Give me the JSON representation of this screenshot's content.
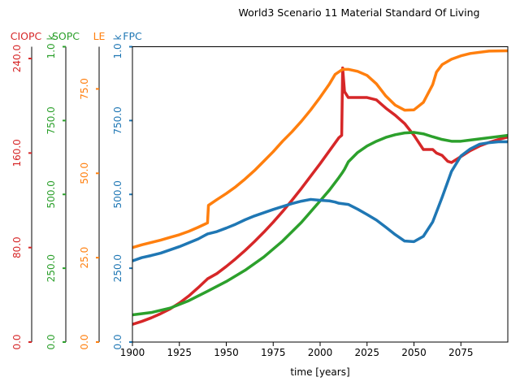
{
  "chart_data": {
    "type": "line",
    "title": "World3 Scenario 11 Material Standard Of Living",
    "xlabel": "time [years]",
    "xlim": [
      1900,
      2100
    ],
    "x_ticks": [
      1900,
      1925,
      1950,
      1975,
      2000,
      2025,
      2050,
      2075
    ],
    "grid": false,
    "series": [
      {
        "name": "CIOPC",
        "color": "#d62728",
        "ylim": [
          0,
          250
        ],
        "tick_values": [
          0,
          80,
          160,
          240
        ],
        "tick_labels": [
          "0.0",
          "80.0",
          "160.0",
          "240.0"
        ],
        "points": [
          [
            1900,
            15
          ],
          [
            1905,
            17.5
          ],
          [
            1910,
            20.5
          ],
          [
            1915,
            24
          ],
          [
            1920,
            28
          ],
          [
            1925,
            33
          ],
          [
            1930,
            39
          ],
          [
            1935,
            46
          ],
          [
            1940,
            53.5
          ],
          [
            1945,
            58
          ],
          [
            1950,
            64
          ],
          [
            1955,
            70.5
          ],
          [
            1960,
            77.5
          ],
          [
            1965,
            85
          ],
          [
            1970,
            93
          ],
          [
            1975,
            101.5
          ],
          [
            1980,
            110.5
          ],
          [
            1985,
            120
          ],
          [
            1990,
            130
          ],
          [
            1995,
            140.5
          ],
          [
            2000,
            151
          ],
          [
            2005,
            162
          ],
          [
            2010,
            173
          ],
          [
            2011.5,
            175
          ],
          [
            2012,
            232
          ],
          [
            2013,
            212
          ],
          [
            2015,
            207
          ],
          [
            2020,
            207
          ],
          [
            2025,
            207
          ],
          [
            2030,
            205
          ],
          [
            2035,
            198
          ],
          [
            2040,
            192
          ],
          [
            2045,
            185
          ],
          [
            2050,
            175
          ],
          [
            2055,
            163
          ],
          [
            2060,
            163
          ],
          [
            2062,
            160
          ],
          [
            2065,
            158
          ],
          [
            2068,
            153
          ],
          [
            2070,
            152
          ],
          [
            2075,
            157
          ],
          [
            2080,
            162
          ],
          [
            2085,
            166
          ],
          [
            2090,
            169
          ],
          [
            2095,
            171.5
          ],
          [
            2100,
            173.5
          ]
        ]
      },
      {
        "name": "SOPC",
        "color": "#2ca02c",
        "ylim": [
          0,
          1000
        ],
        "tick_values": [
          0,
          250,
          500,
          750,
          1000
        ],
        "tick_labels": [
          "0.0",
          "250.0",
          "500.0",
          "750.0",
          "1.0 k"
        ],
        "points": [
          [
            1900,
            92
          ],
          [
            1910,
            100
          ],
          [
            1920,
            115
          ],
          [
            1930,
            140
          ],
          [
            1940,
            172
          ],
          [
            1950,
            205
          ],
          [
            1960,
            243
          ],
          [
            1970,
            288
          ],
          [
            1980,
            342
          ],
          [
            1990,
            405
          ],
          [
            2000,
            478
          ],
          [
            2005,
            515
          ],
          [
            2010,
            557
          ],
          [
            2012,
            575
          ],
          [
            2013,
            585
          ],
          [
            2015,
            610
          ],
          [
            2020,
            642
          ],
          [
            2025,
            664
          ],
          [
            2030,
            680
          ],
          [
            2035,
            693
          ],
          [
            2040,
            702
          ],
          [
            2045,
            708
          ],
          [
            2050,
            710
          ],
          [
            2055,
            705
          ],
          [
            2060,
            695
          ],
          [
            2065,
            686
          ],
          [
            2070,
            680
          ],
          [
            2075,
            680
          ],
          [
            2080,
            684
          ],
          [
            2090,
            692
          ],
          [
            2100,
            700
          ]
        ]
      },
      {
        "name": "LE",
        "color": "#ff7f0e",
        "ylim": [
          0,
          87.5
        ],
        "tick_values": [
          0,
          25,
          50,
          75
        ],
        "tick_labels": [
          "0.0",
          "25.0",
          "50.0",
          "75.0"
        ],
        "points": [
          [
            1900,
            28
          ],
          [
            1905,
            28.8
          ],
          [
            1910,
            29.5
          ],
          [
            1915,
            30.2
          ],
          [
            1920,
            31
          ],
          [
            1925,
            31.8
          ],
          [
            1930,
            32.8
          ],
          [
            1935,
            34
          ],
          [
            1940,
            35.3
          ],
          [
            1940.5,
            40.5
          ],
          [
            1945,
            42.2
          ],
          [
            1950,
            44
          ],
          [
            1955,
            46
          ],
          [
            1960,
            48.3
          ],
          [
            1965,
            50.8
          ],
          [
            1970,
            53.6
          ],
          [
            1975,
            56.4
          ],
          [
            1980,
            59.5
          ],
          [
            1985,
            62.3
          ],
          [
            1990,
            65.4
          ],
          [
            1995,
            68.8
          ],
          [
            2000,
            72.5
          ],
          [
            2005,
            76.5
          ],
          [
            2008,
            79.3
          ],
          [
            2012,
            80.8
          ],
          [
            2015,
            80.8
          ],
          [
            2020,
            80.2
          ],
          [
            2025,
            79
          ],
          [
            2030,
            76.5
          ],
          [
            2035,
            72.9
          ],
          [
            2040,
            70.2
          ],
          [
            2045,
            68.7
          ],
          [
            2050,
            68.8
          ],
          [
            2055,
            71
          ],
          [
            2060,
            76.3
          ],
          [
            2062,
            80
          ],
          [
            2065,
            82.2
          ],
          [
            2070,
            83.8
          ],
          [
            2075,
            84.8
          ],
          [
            2080,
            85.5
          ],
          [
            2090,
            86.2
          ],
          [
            2100,
            86.3
          ]
        ]
      },
      {
        "name": "FPC",
        "color": "#1f77b4",
        "ylim": [
          0,
          1000
        ],
        "tick_values": [
          0,
          250,
          500,
          750,
          1000
        ],
        "tick_labels": [
          "0.0",
          "250.0",
          "500.0",
          "750.0",
          "1.0 k"
        ],
        "points": [
          [
            1900,
            275
          ],
          [
            1905,
            286
          ],
          [
            1910,
            293
          ],
          [
            1915,
            301
          ],
          [
            1920,
            312
          ],
          [
            1925,
            323
          ],
          [
            1930,
            336
          ],
          [
            1935,
            349
          ],
          [
            1940,
            366
          ],
          [
            1945,
            374
          ],
          [
            1950,
            386
          ],
          [
            1955,
            399
          ],
          [
            1960,
            414
          ],
          [
            1965,
            427
          ],
          [
            1970,
            438
          ],
          [
            1975,
            449
          ],
          [
            1980,
            459
          ],
          [
            1985,
            469
          ],
          [
            1990,
            477
          ],
          [
            1995,
            483
          ],
          [
            2000,
            480
          ],
          [
            2005,
            478
          ],
          [
            2008,
            474
          ],
          [
            2010,
            470
          ],
          [
            2015,
            466
          ],
          [
            2020,
            450
          ],
          [
            2025,
            432
          ],
          [
            2030,
            413
          ],
          [
            2035,
            389
          ],
          [
            2040,
            364
          ],
          [
            2045,
            342
          ],
          [
            2050,
            340
          ],
          [
            2055,
            358
          ],
          [
            2060,
            407
          ],
          [
            2065,
            490
          ],
          [
            2070,
            578
          ],
          [
            2075,
            630
          ],
          [
            2080,
            654
          ],
          [
            2085,
            670
          ],
          [
            2090,
            675
          ],
          [
            2095,
            678
          ],
          [
            2100,
            678
          ]
        ]
      }
    ]
  }
}
